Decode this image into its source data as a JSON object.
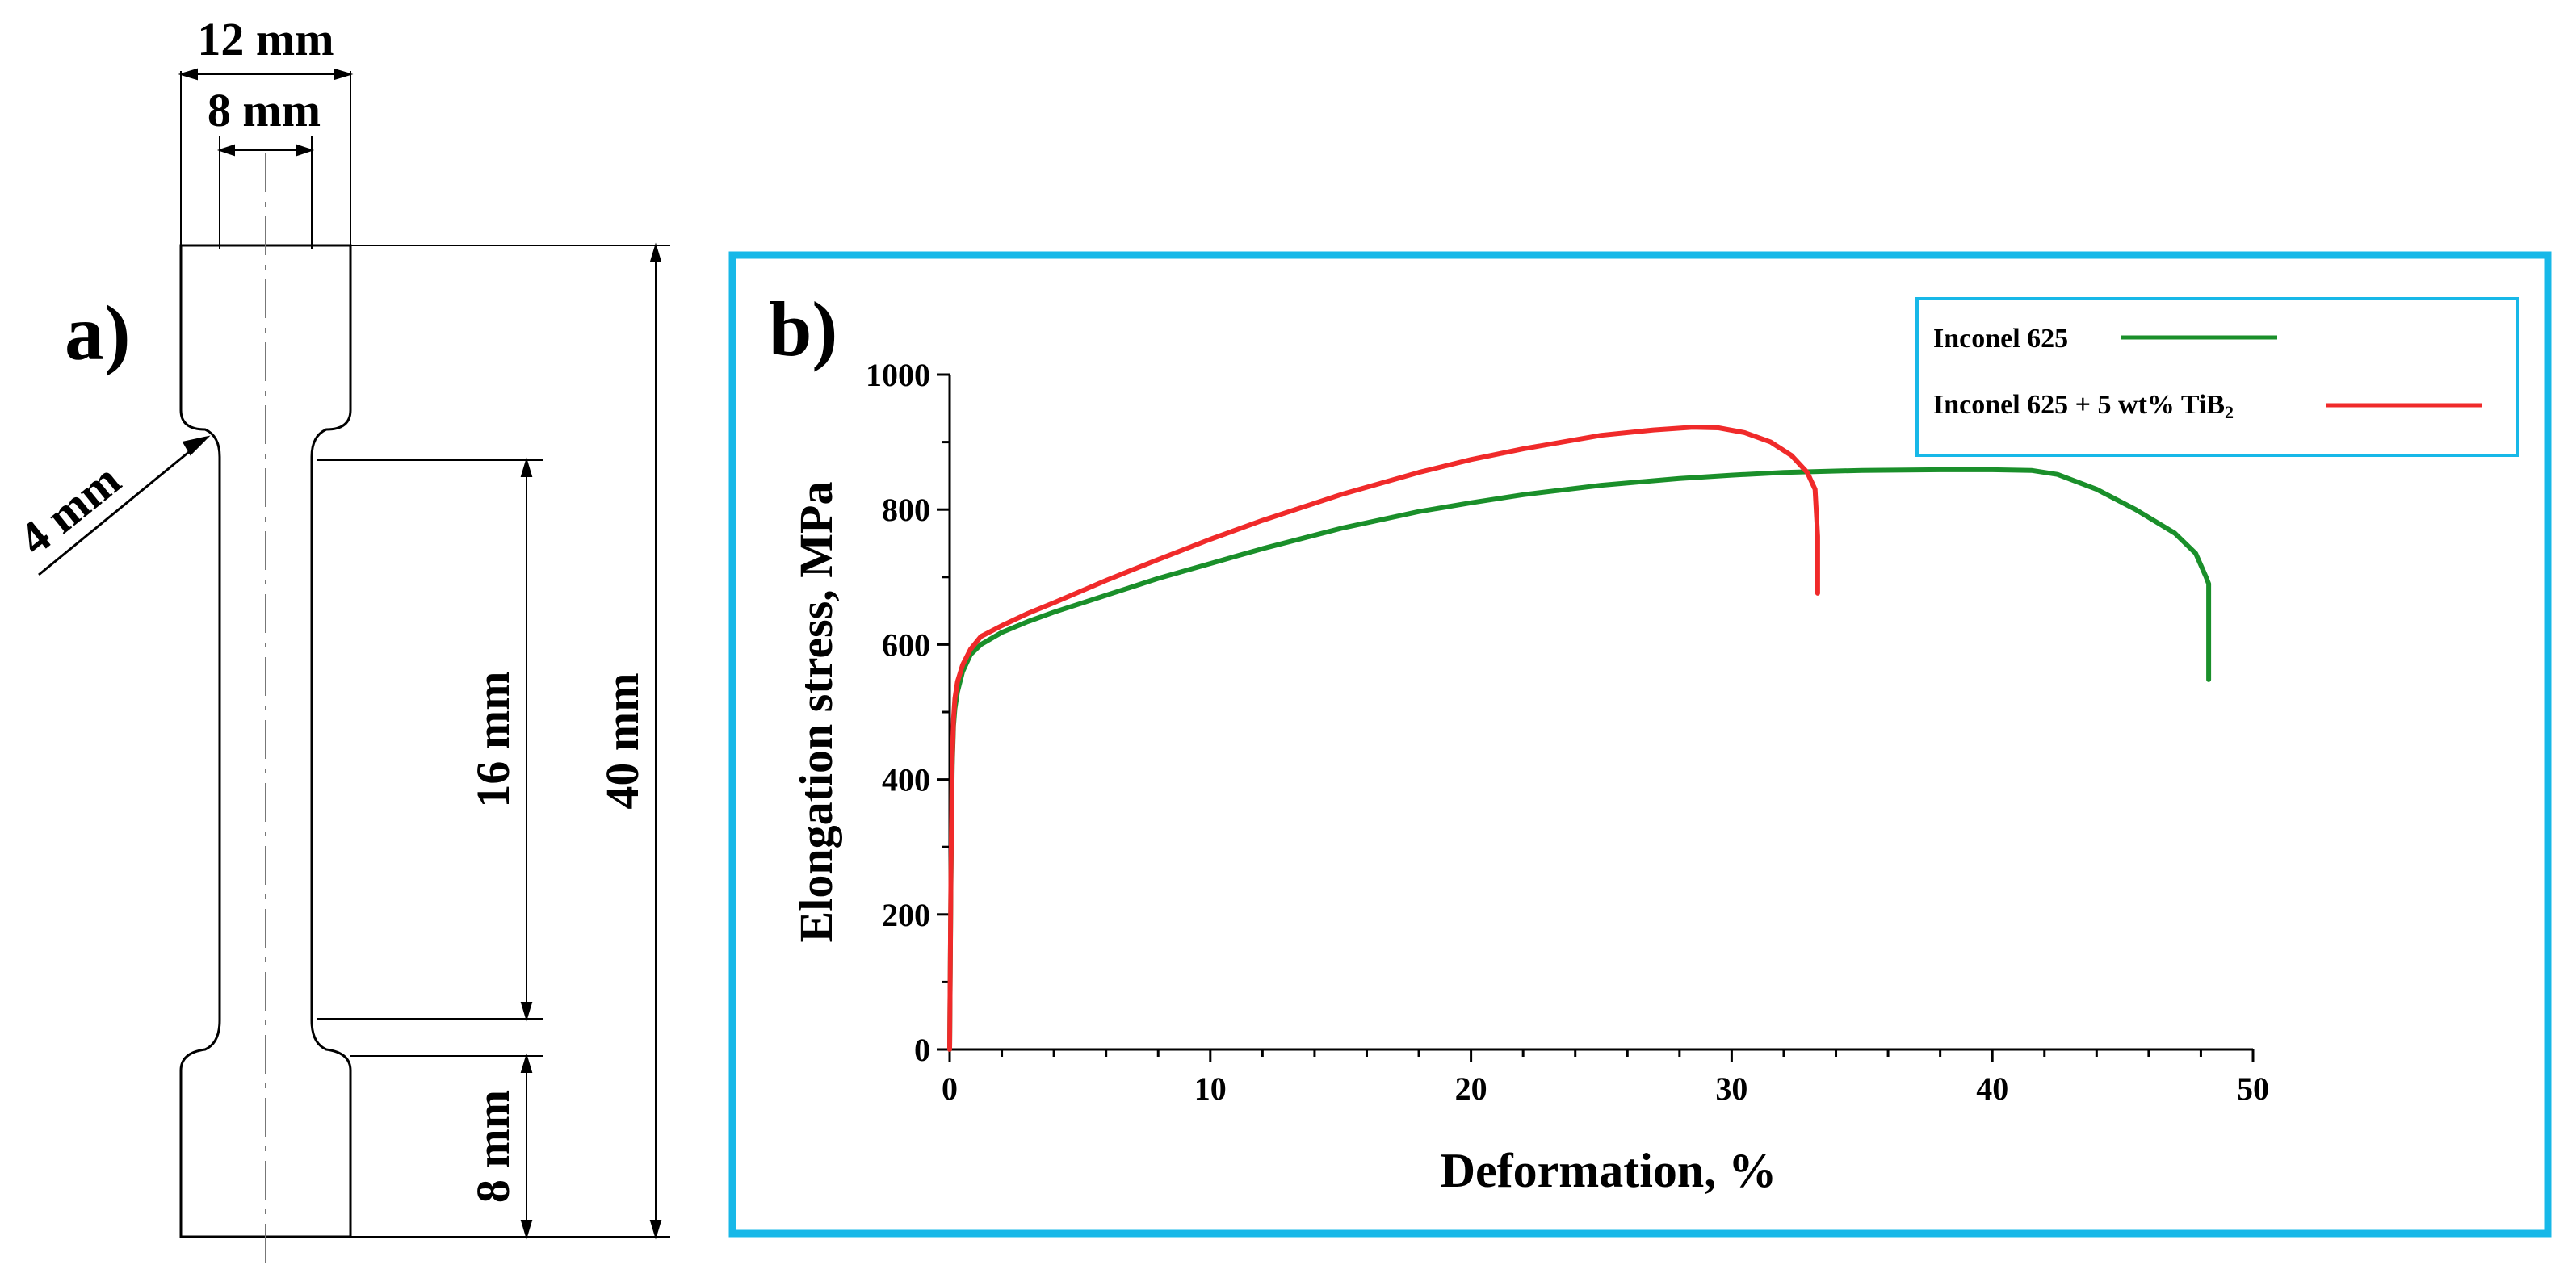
{
  "panel_a": {
    "label": "a)",
    "dimensions": {
      "overall_width": "12 mm",
      "gauge_width": "8 mm",
      "fillet_radius": "4 mm",
      "gauge_length": "16 mm",
      "total_length": "40 mm",
      "grip_length": "8 mm"
    }
  },
  "panel_b": {
    "label": "b)",
    "border_color": "#17b8e8"
  },
  "chart_data": {
    "type": "line",
    "title": "",
    "xlabel": "Deformation, %",
    "ylabel": "Elongation stress, MPa",
    "xlim": [
      0,
      50
    ],
    "ylim": [
      0,
      1000
    ],
    "x_ticks": [
      0,
      10,
      20,
      30,
      40,
      50
    ],
    "y_ticks": [
      0,
      200,
      400,
      600,
      800,
      1000
    ],
    "grid": false,
    "legend_position": "top-right",
    "legend": [
      {
        "name": "Inconel 625",
        "color": "#1a8f2a"
      },
      {
        "name": "Inconel 625 + 5 wt% TiB",
        "sub": "2",
        "color": "#f02a2a"
      }
    ],
    "series": [
      {
        "name": "Inconel 625",
        "color": "#1a8f2a",
        "x": [
          0,
          0.05,
          0.1,
          0.15,
          0.2,
          0.3,
          0.5,
          0.8,
          1.2,
          2,
          3,
          4,
          6,
          8,
          10,
          12,
          15,
          18,
          20,
          22,
          25,
          28,
          30,
          32,
          35,
          38,
          40,
          41.5,
          42.5,
          44,
          45.5,
          47,
          47.8,
          48.2,
          48.3,
          48.3,
          48.3
        ],
        "values": [
          0,
          250,
          420,
          480,
          505,
          530,
          560,
          585,
          600,
          618,
          634,
          648,
          673,
          698,
          720,
          742,
          772,
          797,
          810,
          822,
          836,
          846,
          851,
          855,
          858,
          859,
          859,
          858,
          852,
          830,
          800,
          765,
          735,
          700,
          690,
          600,
          548
        ]
      },
      {
        "name": "Inconel 625 + 5 wt% TiB2",
        "color": "#f02a2a",
        "x": [
          0,
          0.05,
          0.1,
          0.15,
          0.2,
          0.3,
          0.5,
          0.8,
          1.2,
          2,
          3,
          4,
          6,
          8,
          10,
          12,
          15,
          18,
          20,
          22,
          25,
          27,
          28.5,
          29.5,
          30.5,
          31.5,
          32.3,
          32.9,
          33.2,
          33.3,
          33.3
        ],
        "values": [
          0,
          260,
          430,
          490,
          520,
          545,
          570,
          593,
          612,
          628,
          646,
          662,
          695,
          726,
          756,
          784,
          822,
          855,
          874,
          890,
          910,
          918,
          922,
          921,
          914,
          900,
          880,
          855,
          830,
          760,
          676
        ]
      }
    ]
  }
}
